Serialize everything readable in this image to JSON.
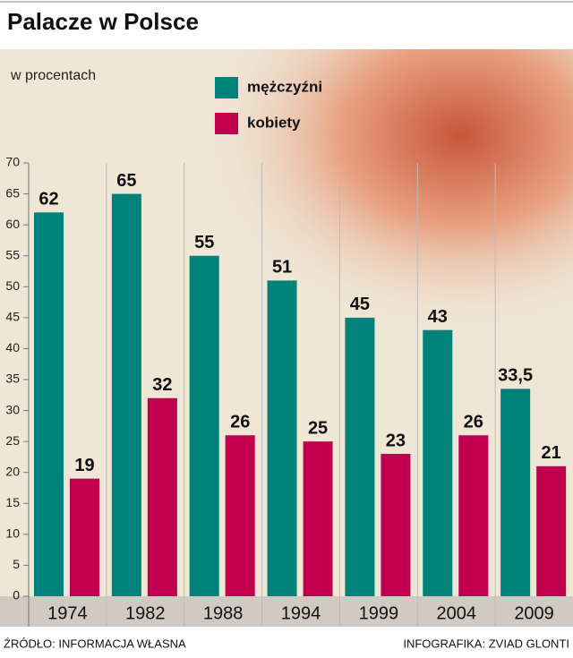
{
  "chart_data": {
    "type": "bar",
    "title": "Palacze w Polsce",
    "subtitle": "w procentach",
    "categories": [
      "1974",
      "1982",
      "1988",
      "1994",
      "1999",
      "2004",
      "2009"
    ],
    "series": [
      {
        "name": "mężczyźni",
        "color": "#00827a",
        "values": [
          62,
          65,
          55,
          51,
          45,
          43,
          33.5
        ],
        "value_labels": [
          "62",
          "65",
          "55",
          "51",
          "45",
          "43",
          "33,5"
        ]
      },
      {
        "name": "kobiety",
        "color": "#c0004f",
        "values": [
          19,
          32,
          26,
          25,
          23,
          26,
          21
        ]
      }
    ],
    "ylim": [
      0,
      70
    ],
    "yticks": [
      0,
      5,
      10,
      15,
      20,
      25,
      30,
      35,
      40,
      45,
      50,
      55,
      60,
      65,
      70
    ],
    "source": "ŹRÓDŁO: INFORMACJA WŁASNA",
    "credit": "INFOGRAFIKA: ZVIAD GLONTI"
  }
}
